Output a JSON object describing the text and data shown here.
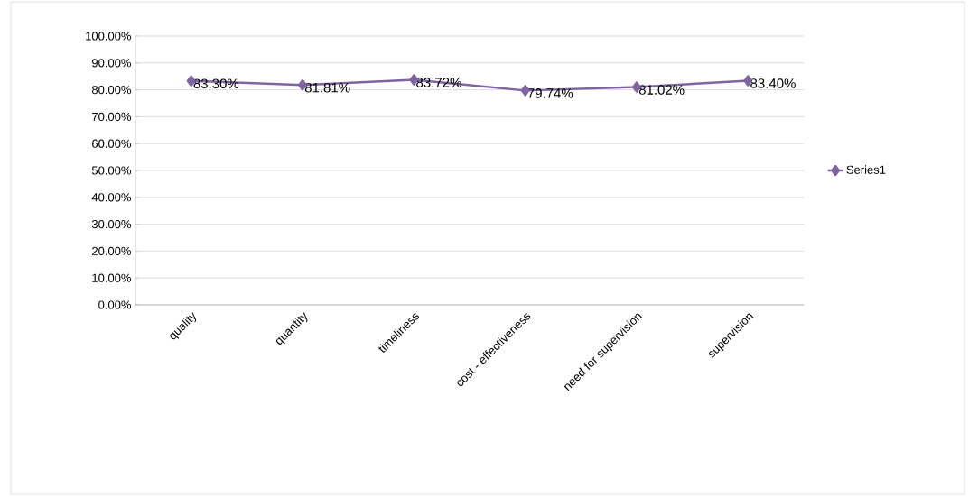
{
  "chart_data": {
    "type": "line",
    "categories": [
      "quality",
      "quantity",
      "timeliness",
      "cost - effectiveness",
      "need for supervision",
      "supervision"
    ],
    "series": [
      {
        "name": "Series1",
        "color": "#8064a2",
        "values": [
          83.3,
          81.81,
          83.72,
          79.74,
          81.02,
          83.4
        ],
        "value_labels": [
          "83.30%",
          "81.81%",
          "83.72%",
          "79.74%",
          "81.02%",
          "83.40%"
        ]
      }
    ],
    "ylim": [
      0,
      100
    ],
    "yticks": [
      {
        "value": 0,
        "label": "0.00%"
      },
      {
        "value": 10,
        "label": "10.00%"
      },
      {
        "value": 20,
        "label": "20.00%"
      },
      {
        "value": 30,
        "label": "30.00%"
      },
      {
        "value": 40,
        "label": "40.00%"
      },
      {
        "value": 50,
        "label": "50.00%"
      },
      {
        "value": 60,
        "label": "60.00%"
      },
      {
        "value": 70,
        "label": "70.00%"
      },
      {
        "value": 80,
        "label": "80.00%"
      },
      {
        "value": 90,
        "label": "90.00%"
      },
      {
        "value": 100,
        "label": "100.00%"
      }
    ],
    "grid": "y",
    "legend": "right",
    "marker": "diamond",
    "line_style": "solid"
  }
}
